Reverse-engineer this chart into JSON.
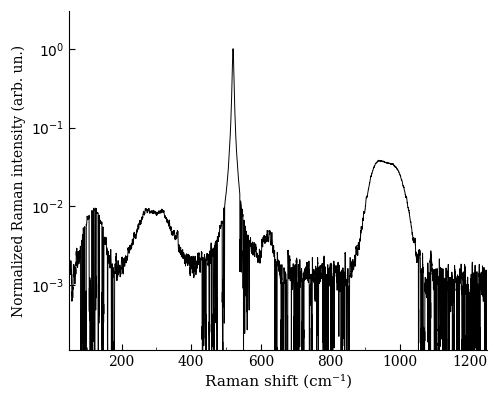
{
  "xlabel": "Raman shift (cm⁻¹)",
  "ylabel": "Normalized Raman intensity (arb. un.)",
  "xlim": [
    50,
    1250
  ],
  "ylim": [
    0.00015,
    3.0
  ],
  "xticks": [
    200,
    400,
    600,
    800,
    1000,
    1200
  ],
  "yticks": [
    0.001,
    0.01,
    0.1,
    1.0
  ],
  "background_color": "#ffffff",
  "line_color": "#000000",
  "line_width": 0.7,
  "seed": 12345
}
